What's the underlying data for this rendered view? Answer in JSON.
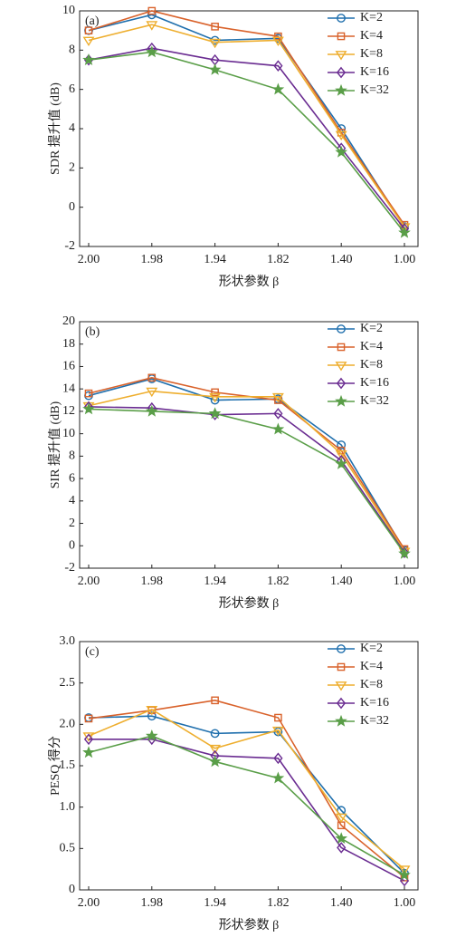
{
  "chart_data": [
    {
      "type": "line",
      "panel_label": "(a)",
      "ylabel": "SDR 提升值 (dB)",
      "xlabel": "形状参数 β",
      "categories": [
        "2.00",
        "1.98",
        "1.94",
        "1.82",
        "1.40",
        "1.00"
      ],
      "ylim": [
        -2,
        10
      ],
      "yticks": [
        -2,
        0,
        2,
        4,
        6,
        8,
        10
      ],
      "legend": "upper right",
      "series": [
        {
          "name": "K=2",
          "color": "#1f6fad",
          "marker": "circle",
          "values": [
            9.0,
            9.8,
            8.5,
            8.6,
            4.0,
            -1.0
          ]
        },
        {
          "name": "K=4",
          "color": "#d9622b",
          "marker": "square",
          "values": [
            9.0,
            10.0,
            9.2,
            8.7,
            3.8,
            -0.9
          ]
        },
        {
          "name": "K=8",
          "color": "#eeae2e",
          "marker": "triangle-down",
          "values": [
            8.5,
            9.3,
            8.4,
            8.5,
            3.7,
            -1.0
          ]
        },
        {
          "name": "K=16",
          "color": "#6a2c91",
          "marker": "diamond",
          "values": [
            7.5,
            8.1,
            7.5,
            7.2,
            3.0,
            -1.1
          ]
        },
        {
          "name": "K=32",
          "color": "#5a9e48",
          "marker": "star",
          "values": [
            7.5,
            7.9,
            7.0,
            6.0,
            2.8,
            -1.3
          ]
        }
      ]
    },
    {
      "type": "line",
      "panel_label": "(b)",
      "ylabel": "SIR 提升值 (dB)",
      "xlabel": "形状参数 β",
      "categories": [
        "2.00",
        "1.98",
        "1.94",
        "1.82",
        "1.40",
        "1.00"
      ],
      "ylim": [
        -2,
        20
      ],
      "yticks": [
        -2,
        0,
        2,
        4,
        6,
        8,
        10,
        12,
        14,
        16,
        18,
        20
      ],
      "legend": "upper right",
      "series": [
        {
          "name": "K=2",
          "color": "#1f6fad",
          "marker": "circle",
          "values": [
            13.4,
            14.9,
            13.0,
            13.1,
            9.0,
            -0.4
          ]
        },
        {
          "name": "K=4",
          "color": "#d9622b",
          "marker": "square",
          "values": [
            13.6,
            15.0,
            13.7,
            13.0,
            8.5,
            -0.3
          ]
        },
        {
          "name": "K=8",
          "color": "#eeae2e",
          "marker": "triangle-down",
          "values": [
            12.5,
            13.8,
            13.3,
            13.3,
            8.2,
            -0.5
          ]
        },
        {
          "name": "K=16",
          "color": "#6a2c91",
          "marker": "diamond",
          "values": [
            12.4,
            12.3,
            11.7,
            11.8,
            7.6,
            -0.6
          ]
        },
        {
          "name": "K=32",
          "color": "#5a9e48",
          "marker": "star",
          "values": [
            12.2,
            12.0,
            11.8,
            10.4,
            7.3,
            -0.7
          ]
        }
      ]
    },
    {
      "type": "line",
      "panel_label": "(c)",
      "ylabel": "PESQ 得分",
      "xlabel": "形状参数 β",
      "categories": [
        "2.00",
        "1.98",
        "1.94",
        "1.82",
        "1.40",
        "1.00"
      ],
      "ylim": [
        0,
        3
      ],
      "yticks": [
        0,
        0.5,
        {
          "value": 1,
          "label": "1.0"
        },
        1.5,
        {
          "value": 2,
          "label": "2.0"
        },
        2.5,
        {
          "value": 3,
          "label": "3.0"
        }
      ],
      "legend": "upper right",
      "series": [
        {
          "name": "K=2",
          "color": "#1f6fad",
          "marker": "circle",
          "values": [
            2.08,
            2.1,
            1.89,
            1.91,
            0.96,
            0.2
          ]
        },
        {
          "name": "K=4",
          "color": "#d9622b",
          "marker": "square",
          "values": [
            2.07,
            2.17,
            2.29,
            2.08,
            0.78,
            0.15
          ]
        },
        {
          "name": "K=8",
          "color": "#eeae2e",
          "marker": "triangle-down",
          "values": [
            1.86,
            2.18,
            1.71,
            1.93,
            0.88,
            0.25
          ]
        },
        {
          "name": "K=16",
          "color": "#6a2c91",
          "marker": "diamond",
          "values": [
            1.82,
            1.82,
            1.62,
            1.59,
            0.51,
            0.11
          ]
        },
        {
          "name": "K=32",
          "color": "#5a9e48",
          "marker": "star",
          "values": [
            1.66,
            1.86,
            1.55,
            1.35,
            0.62,
            0.18
          ]
        }
      ]
    }
  ]
}
